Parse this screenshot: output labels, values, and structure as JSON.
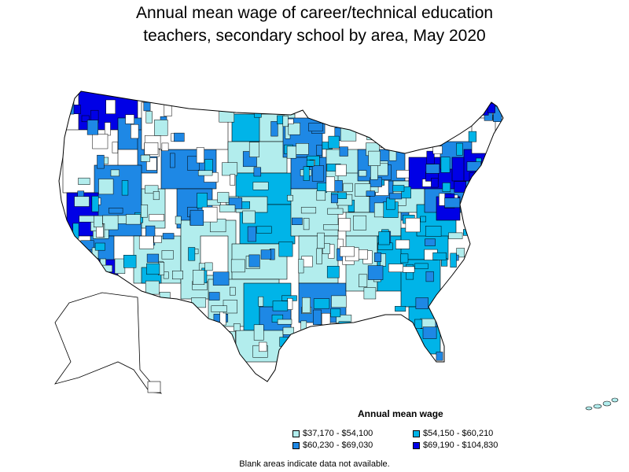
{
  "title_line1": "Annual mean wage of career/technical education",
  "title_line2": "teachers, secondary school by area, May 2020",
  "legend": {
    "title": "Annual mean wage",
    "items": [
      {
        "label": "$37,170 - $54,100",
        "color": "#b2eded"
      },
      {
        "label": "$54,150 - $60,210",
        "color": "#00b4e8"
      },
      {
        "label": "$60,230 - $69,030",
        "color": "#1e88e5"
      },
      {
        "label": "$69,190 - $104,830",
        "color": "#0000e6"
      }
    ]
  },
  "footnote": "Blank areas indicate data not available.",
  "colors": {
    "blank": "#ffffff",
    "border": "#000000",
    "tier1": "#b2eded",
    "tier2": "#00b4e8",
    "tier3": "#1e88e5",
    "tier4": "#0000e6"
  }
}
